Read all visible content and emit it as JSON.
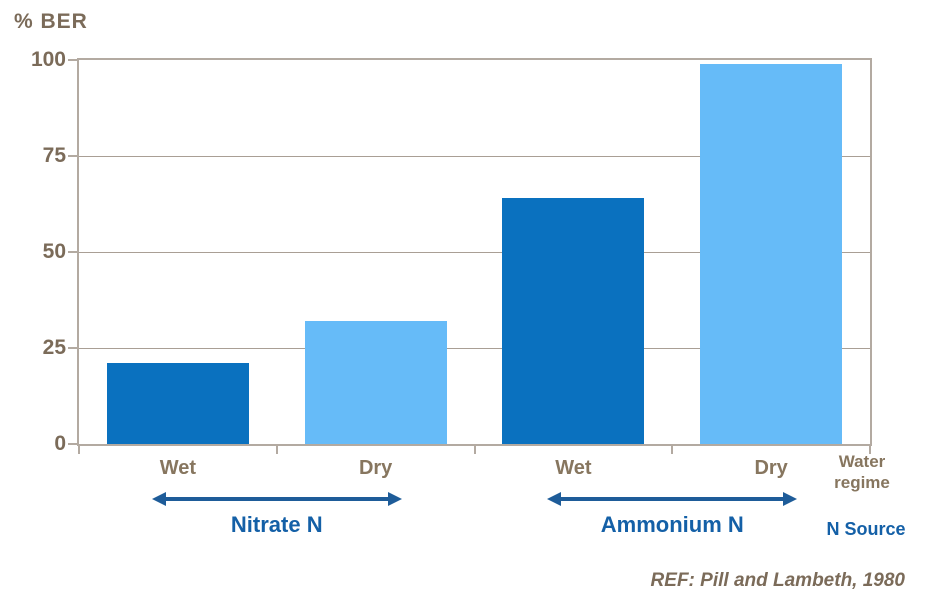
{
  "chart_data": {
    "type": "bar",
    "ylabel": "% BER",
    "categories": [
      "Wet",
      "Dry",
      "Wet",
      "Dry"
    ],
    "values": [
      21,
      32,
      64,
      99
    ],
    "bar_colors": [
      "#0A71BF",
      "#66BBF8",
      "#0A71BF",
      "#66BBF8"
    ],
    "ylim": [
      0,
      100
    ],
    "yticks": [
      0,
      25,
      50,
      75,
      100
    ],
    "grid": "horizontal",
    "legend_position": "none",
    "groups": [
      {
        "label": "Nitrate N",
        "categories": [
          0,
          1
        ]
      },
      {
        "label": "Ammonium N",
        "categories": [
          2,
          3
        ]
      }
    ]
  },
  "axis_notes": {
    "water_regime": "Water regime",
    "n_source": "N Source"
  },
  "reference": "REF: Pill and Lambeth, 1980",
  "colors": {
    "bar_dark": "#0A71BF",
    "bar_light": "#66BBF8",
    "plot_border": "#B3AAA1",
    "gridline": "#A99F95",
    "axis_text": "#7B6B59",
    "category_text": "#87765F",
    "group_text": "#1460A7",
    "arrow": "#1E5C99",
    "reference_text": "#7B6B59"
  }
}
